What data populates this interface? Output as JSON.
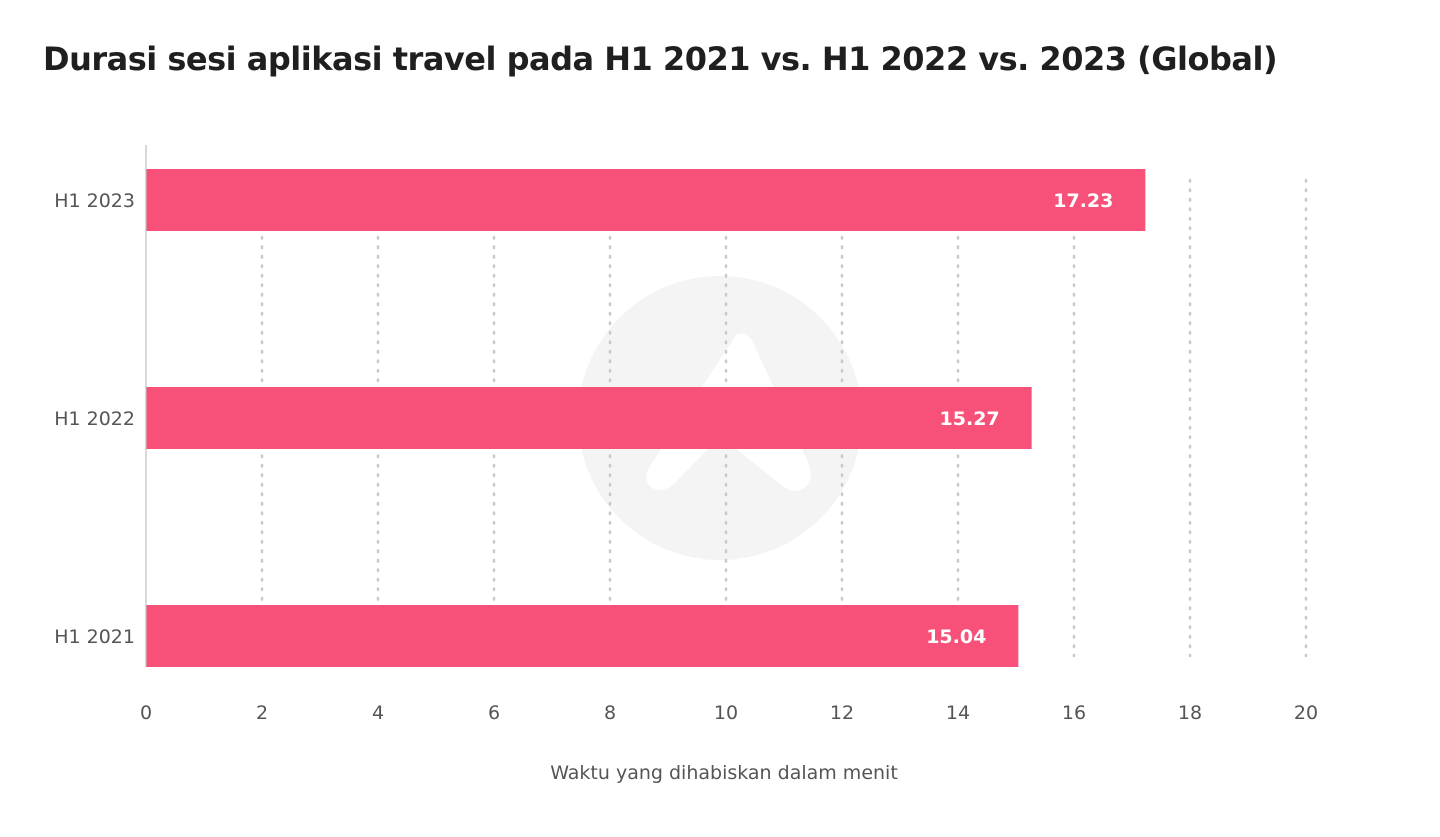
{
  "chart_data": {
    "type": "bar",
    "orientation": "horizontal",
    "title": "Durasi sesi aplikasi travel pada H1 2021 vs. H1 2022 vs. 2023 (Global)",
    "xlabel": "Waktu yang dihabiskan dalam menit",
    "ylabel": "",
    "categories": [
      "H1 2023",
      "H1 2022",
      "H1 2021"
    ],
    "values": [
      17.23,
      15.27,
      15.04
    ],
    "value_labels": [
      "17.23",
      "15.27",
      "15.04"
    ],
    "xlim": [
      0,
      20
    ],
    "x_ticks": [
      "0",
      "2",
      "4",
      "6",
      "8",
      "10",
      "12",
      "14",
      "16",
      "18",
      "20"
    ],
    "grid": "vertical dotted",
    "legend": "none",
    "bar_color": "#f75079",
    "watermark": "brand-logo"
  }
}
